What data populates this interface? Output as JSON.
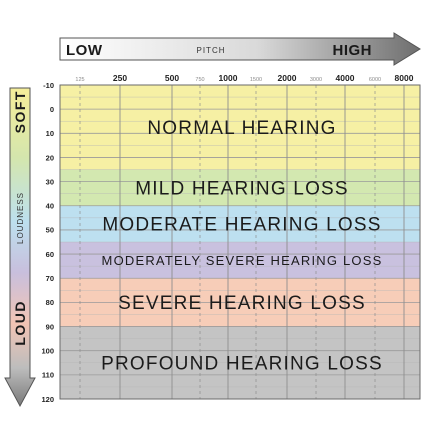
{
  "pitch_axis": {
    "low_label": "LOW",
    "mid_label": "PITCH",
    "high_label": "HIGH"
  },
  "loudness_axis": {
    "soft_label": "SOFT",
    "mid_label": "LOUDNESS",
    "loud_label": "LOUD"
  },
  "chart_data": {
    "type": "heatmap",
    "title": "",
    "xlabel": "PITCH",
    "ylabel": "LOUDNESS",
    "x_scale": "log",
    "y_inverted": true,
    "grid": true,
    "x_major_ticks": [
      {
        "value": 250,
        "label": "250"
      },
      {
        "value": 500,
        "label": "500"
      },
      {
        "value": 1000,
        "label": "1000"
      },
      {
        "value": 2000,
        "label": "2000"
      },
      {
        "value": 4000,
        "label": "4000"
      },
      {
        "value": 8000,
        "label": "8000"
      }
    ],
    "x_minor_ticks": [
      {
        "value": 125,
        "label": "125"
      },
      {
        "value": 750,
        "label": "750"
      },
      {
        "value": 1500,
        "label": "1500"
      },
      {
        "value": 3000,
        "label": "3000"
      },
      {
        "value": 6000,
        "label": "6000"
      }
    ],
    "y_ticks": [
      -10,
      0,
      10,
      20,
      30,
      40,
      50,
      60,
      70,
      80,
      90,
      100,
      110,
      120
    ],
    "ylim": [
      -10,
      120
    ],
    "bands": [
      {
        "label": "NORMAL HEARING",
        "from": -10,
        "to": 25,
        "color": "#f6f0a4"
      },
      {
        "label": "MILD HEARING LOSS",
        "from": 25,
        "to": 40,
        "color": "#d3e8b0"
      },
      {
        "label": "MODERATE HEARING LOSS",
        "from": 40,
        "to": 55,
        "color": "#bde0f0"
      },
      {
        "label": "MODERATELY SEVERE HEARING LOSS",
        "from": 55,
        "to": 70,
        "color": "#c9c1df"
      },
      {
        "label": "SEVERE HEARING LOSS",
        "from": 70,
        "to": 90,
        "color": "#f7cdb8"
      },
      {
        "label": "PROFOUND HEARING LOSS",
        "from": 90,
        "to": 120,
        "color": "#c4c4c4"
      }
    ]
  }
}
